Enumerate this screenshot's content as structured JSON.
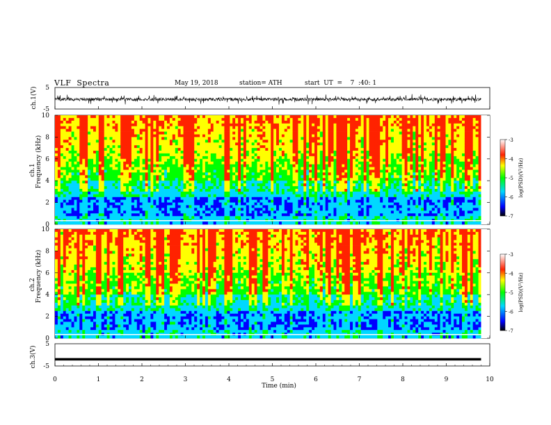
{
  "header": {
    "title": "VLF  Spectra",
    "date": "May 19, 2018",
    "station": "station= ATH",
    "start": "start  UT  =    7  :40: 1"
  },
  "chart_data": [
    {
      "type": "line",
      "name": "ch1-waveform",
      "ylabel": "ch.1(V)",
      "ylim": [
        -5,
        5
      ],
      "yticks": [
        "5",
        "-5"
      ],
      "description_level": "noisy waveform around -0.5 V, spikes to about +/-2 V"
    },
    {
      "type": "heatmap",
      "name": "ch1-spectrogram",
      "ylabel": "ch.1\nFrequency (kHz)",
      "ylabel_lines": [
        "ch.1",
        "Frequency (kHz)"
      ],
      "ylim": [
        0,
        10
      ],
      "yticks": [
        "0",
        "2",
        "4",
        "6",
        "8",
        "10"
      ],
      "colorbar": {
        "label": "log(PSD)(V²/Hz)",
        "ticks": [
          "-3",
          "-4",
          "-5",
          "-6",
          "-7"
        ],
        "range": [
          -7,
          -3
        ]
      }
    },
    {
      "type": "heatmap",
      "name": "ch2-spectrogram",
      "ylabel_lines": [
        "ch.2",
        "Frequency (kHz)"
      ],
      "ylim": [
        0,
        10
      ],
      "yticks": [
        "0",
        "2",
        "4",
        "6",
        "8",
        "10"
      ],
      "colorbar": {
        "label": "log(PSD)(V²/Hz)",
        "ticks": [
          "-3",
          "-4",
          "-5",
          "-6",
          "-7"
        ],
        "range": [
          -7,
          -3
        ]
      }
    },
    {
      "type": "line",
      "name": "ch3-waveform",
      "ylabel": "ch.3(V)",
      "ylim": [
        -5,
        5
      ],
      "yticks": [
        "5",
        "-5"
      ],
      "level": -2
    }
  ],
  "xaxis": {
    "label": "Time  (min)",
    "ticks": [
      "0",
      "1",
      "2",
      "3",
      "4",
      "5",
      "6",
      "7",
      "8",
      "9",
      "10"
    ],
    "range": [
      0,
      10
    ],
    "data_end": 9.8
  },
  "colors": {
    "scale": [
      "#000000",
      "#0000ff",
      "#00d8ff",
      "#00ff00",
      "#ffff00",
      "#ff2200",
      "#ffffff"
    ]
  }
}
